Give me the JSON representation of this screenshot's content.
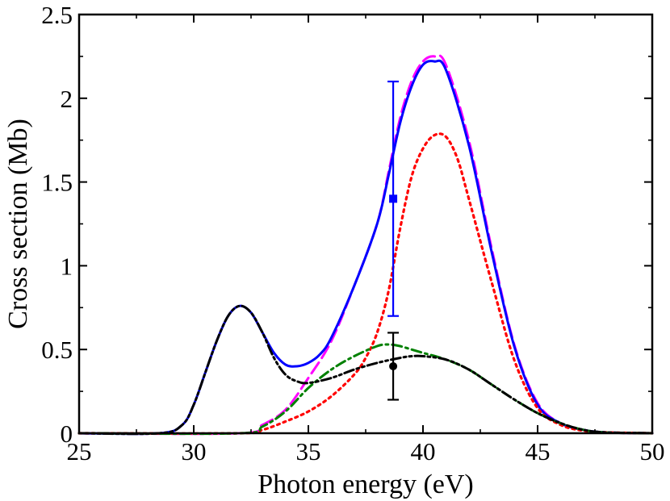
{
  "chart_data": {
    "type": "line",
    "title": "",
    "xlabel": "Photon energy (eV)",
    "ylabel": "Cross section (Mb)",
    "xlim": [
      25,
      50
    ],
    "ylim": [
      0,
      2.5
    ],
    "xticks": [
      25,
      30,
      35,
      40,
      45,
      50
    ],
    "xtick_labels": [
      "25",
      "30",
      "35",
      "40",
      "45",
      "50"
    ],
    "yticks": [
      0,
      0.5,
      1,
      1.5,
      2,
      2.5
    ],
    "ytick_labels": [
      "0",
      "0.5",
      "1",
      "1.5",
      "2",
      "2.5"
    ],
    "grid": false,
    "legend": "none",
    "series": [
      {
        "color": "#ff00ff",
        "style": "dashed",
        "x": [
          25,
          32,
          33,
          34,
          35,
          36,
          37,
          38,
          38.5,
          39,
          39.5,
          40,
          40.5,
          41,
          42,
          43,
          44,
          45,
          46,
          47,
          48,
          50
        ],
        "y": [
          0,
          0,
          0.05,
          0.14,
          0.33,
          0.55,
          0.88,
          1.25,
          1.56,
          1.88,
          2.1,
          2.22,
          2.25,
          2.2,
          1.75,
          1.1,
          0.52,
          0.18,
          0.06,
          0.02,
          0.005,
          0
        ]
      },
      {
        "color": "#0000ff",
        "style": "solid",
        "x": [
          25,
          28.5,
          29.5,
          30,
          30.5,
          31,
          31.5,
          32,
          32.5,
          33,
          33.5,
          34,
          34.5,
          35,
          35.5,
          36,
          37,
          38,
          38.5,
          39,
          39.5,
          40,
          40.5,
          41,
          42,
          43,
          44,
          45,
          46,
          47,
          48,
          50
        ],
        "y": [
          0,
          0,
          0.05,
          0.17,
          0.36,
          0.55,
          0.7,
          0.76,
          0.72,
          0.6,
          0.48,
          0.41,
          0.4,
          0.42,
          0.47,
          0.57,
          0.88,
          1.25,
          1.54,
          1.85,
          2.07,
          2.2,
          2.22,
          2.17,
          1.72,
          1.08,
          0.51,
          0.17,
          0.06,
          0.02,
          0.005,
          0
        ]
      },
      {
        "color": "#ff0000",
        "style": "dotted",
        "x": [
          25,
          32,
          33,
          34,
          35,
          36,
          37,
          37.5,
          38,
          38.5,
          39,
          39.5,
          40,
          40.5,
          41,
          41.5,
          42,
          43,
          44,
          45,
          46,
          47,
          48,
          50
        ],
        "y": [
          0,
          0,
          0.02,
          0.07,
          0.13,
          0.22,
          0.35,
          0.45,
          0.6,
          0.85,
          1.22,
          1.53,
          1.7,
          1.78,
          1.77,
          1.64,
          1.4,
          0.9,
          0.43,
          0.15,
          0.05,
          0.015,
          0.005,
          0
        ]
      },
      {
        "color": "#008000",
        "style": "dash-dot",
        "x": [
          25,
          32,
          33,
          34,
          35,
          36,
          37,
          38,
          38.5,
          39,
          39.5,
          40,
          41,
          42,
          43,
          44,
          45,
          46,
          47,
          48,
          50
        ],
        "y": [
          0,
          0,
          0.04,
          0.13,
          0.27,
          0.38,
          0.46,
          0.52,
          0.53,
          0.52,
          0.5,
          0.48,
          0.44,
          0.38,
          0.29,
          0.2,
          0.12,
          0.06,
          0.02,
          0.005,
          0
        ]
      },
      {
        "color": "#000000",
        "style": "dash-dot-dot",
        "x": [
          25,
          28.5,
          29.5,
          30,
          30.5,
          31,
          31.5,
          32,
          32.5,
          33,
          33.5,
          34,
          34.5,
          35,
          36,
          37,
          38,
          39,
          39.5,
          40,
          41,
          42,
          43,
          44,
          45,
          46,
          47,
          48,
          50
        ],
        "y": [
          0,
          0,
          0.05,
          0.17,
          0.36,
          0.55,
          0.7,
          0.76,
          0.72,
          0.6,
          0.45,
          0.35,
          0.31,
          0.3,
          0.33,
          0.38,
          0.42,
          0.45,
          0.46,
          0.46,
          0.44,
          0.38,
          0.29,
          0.2,
          0.12,
          0.06,
          0.02,
          0.005,
          0
        ]
      }
    ],
    "error_bars": [
      {
        "color": "#0000ff",
        "marker": "square",
        "x": 38.7,
        "y": 1.4,
        "ylow": 0.7,
        "yhigh": 2.1
      },
      {
        "color": "#000000",
        "marker": "circle",
        "x": 38.7,
        "y": 0.4,
        "ylow": 0.2,
        "yhigh": 0.6
      }
    ]
  }
}
